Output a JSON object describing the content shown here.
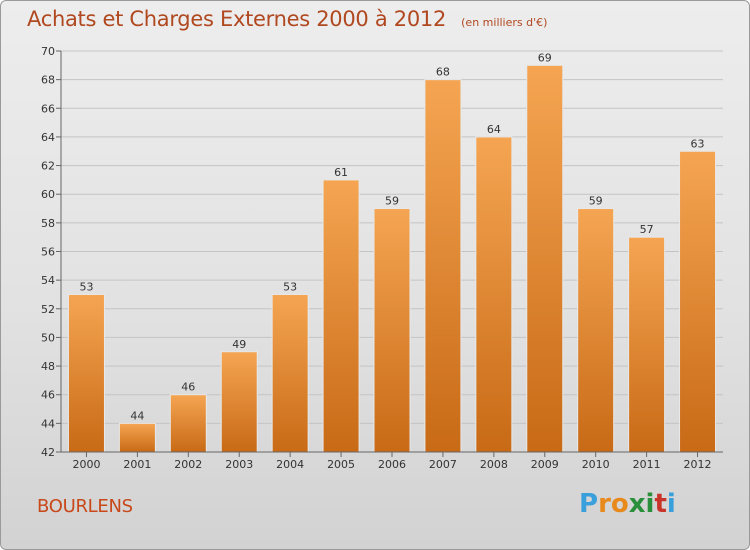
{
  "title": "Achats et Charges Externes 2000 à 2012",
  "subtitle": "(en milliers d'€)",
  "location": "BOURLENS",
  "logo": {
    "text": "Proxiti",
    "letters": [
      "P",
      "r",
      "o",
      "x",
      "i",
      "t",
      "i"
    ],
    "colors": [
      "#3aa0dc",
      "#e8891c",
      "#e8891c",
      "#2a8f3a",
      "#2a8f3a",
      "#c8342a",
      "#3aa0dc"
    ]
  },
  "colors": {
    "bar_top": "#f5a552",
    "bar_bottom": "#c86a16",
    "title": "#b04820"
  },
  "chart_data": {
    "type": "bar",
    "categories": [
      "2000",
      "2001",
      "2002",
      "2003",
      "2004",
      "2005",
      "2006",
      "2007",
      "2008",
      "2009",
      "2010",
      "2011",
      "2012"
    ],
    "values": [
      53,
      44,
      46,
      49,
      53,
      61,
      59,
      68,
      64,
      69,
      59,
      57,
      63
    ],
    "ylim": [
      42,
      70
    ],
    "yticks": [
      42,
      44,
      46,
      48,
      50,
      52,
      54,
      56,
      58,
      60,
      62,
      64,
      66,
      68,
      70
    ],
    "grid": true,
    "title": "Achats et Charges Externes 2000 à 2012",
    "xlabel": "",
    "ylabel": ""
  }
}
